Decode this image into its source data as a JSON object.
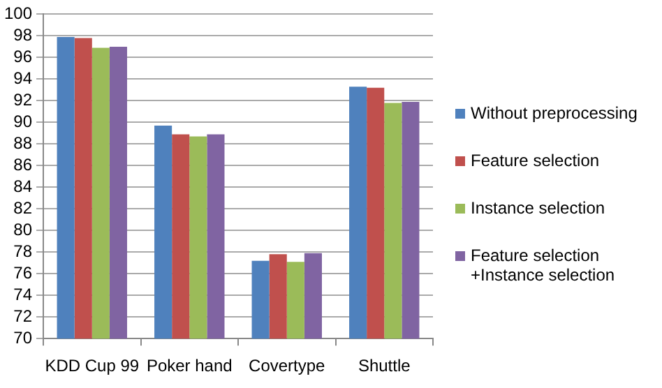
{
  "chart_data": {
    "type": "bar",
    "categories": [
      "KDD Cup 99",
      "Poker hand",
      "Covertype",
      "Shuttle"
    ],
    "series": [
      {
        "name": "Without preprocessing",
        "color": "#4f81bd",
        "values": [
          97.9,
          89.7,
          77.2,
          93.3
        ]
      },
      {
        "name": "Feature selection",
        "color": "#c0504d",
        "values": [
          97.8,
          88.9,
          77.8,
          93.2
        ]
      },
      {
        "name": "Instance selection",
        "color": "#9bbb59",
        "values": [
          96.9,
          88.7,
          77.1,
          91.8
        ]
      },
      {
        "name": "Feature selection +Instance selection",
        "color": "#8064a2",
        "values": [
          97.0,
          88.9,
          77.9,
          91.9
        ]
      }
    ],
    "ylim": [
      70,
      100
    ],
    "yticks": [
      70,
      72,
      74,
      76,
      78,
      80,
      82,
      84,
      86,
      88,
      90,
      92,
      94,
      96,
      98,
      100
    ],
    "grid": "y",
    "legend": "right"
  }
}
